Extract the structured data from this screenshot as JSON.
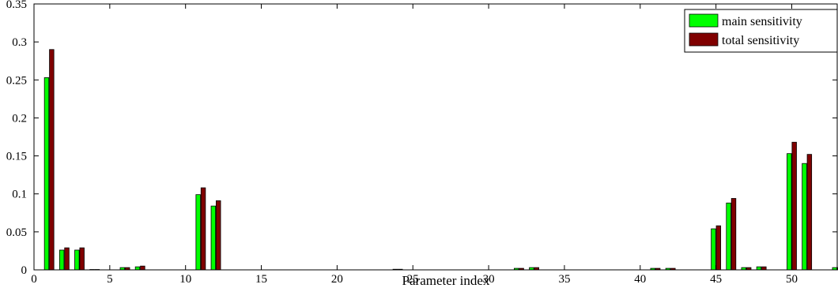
{
  "chart_data": {
    "type": "bar",
    "title": "",
    "xlabel": "Parameter index",
    "ylabel": "",
    "xlim": [
      0,
      53
    ],
    "ylim": [
      0,
      0.35
    ],
    "xticks": [
      0,
      5,
      10,
      15,
      20,
      25,
      30,
      35,
      40,
      45,
      50
    ],
    "yticks": [
      0,
      0.05,
      0.1,
      0.15,
      0.2,
      0.25,
      0.3,
      0.35
    ],
    "xtick_labels": [
      "0",
      "5",
      "10",
      "15",
      "20",
      "25",
      "30",
      "35",
      "40",
      "45",
      "50"
    ],
    "ytick_labels": [
      "0",
      "0.05",
      "0.1",
      "0.15",
      "0.2",
      "0.25",
      "0.3",
      "0.35"
    ],
    "grid": false,
    "legend_position": "top-right",
    "x": [
      1,
      2,
      3,
      4,
      5,
      6,
      7,
      8,
      9,
      10,
      11,
      12,
      13,
      14,
      15,
      16,
      17,
      18,
      19,
      20,
      21,
      22,
      23,
      24,
      25,
      26,
      27,
      28,
      29,
      30,
      31,
      32,
      33,
      34,
      35,
      36,
      37,
      38,
      39,
      40,
      41,
      42,
      43,
      44,
      45,
      46,
      47,
      48,
      49,
      50,
      51,
      52,
      53
    ],
    "series": [
      {
        "name": "main sensitivity",
        "color": "#00ff00",
        "values": [
          0.253,
          0.026,
          0.026,
          0.0005,
          0,
          0.003,
          0.004,
          0,
          0,
          0,
          0.099,
          0.084,
          0,
          0,
          0,
          0,
          0,
          0,
          0,
          0,
          0,
          0,
          0,
          0.0008,
          0,
          0,
          0,
          0,
          0,
          0,
          0,
          0.002,
          0.003,
          0,
          0,
          0,
          0,
          0,
          0,
          0,
          0.002,
          0.002,
          0,
          0,
          0.054,
          0.088,
          0.003,
          0.004,
          0,
          0.153,
          0.14,
          0,
          0.003
        ]
      },
      {
        "name": "total sensitivity",
        "color": "#800000",
        "values": [
          0.29,
          0.029,
          0.029,
          0.0005,
          0,
          0.003,
          0.005,
          0,
          0,
          0,
          0.108,
          0.091,
          0,
          0,
          0,
          0,
          0,
          0,
          0,
          0,
          0,
          0,
          0,
          0.0008,
          0,
          0,
          0,
          0,
          0,
          0,
          0,
          0.002,
          0.003,
          0,
          0,
          0,
          0,
          0,
          0,
          0,
          0.002,
          0.002,
          0,
          0,
          0.058,
          0.094,
          0.003,
          0.004,
          0,
          0.168,
          0.152,
          0,
          0.003
        ]
      }
    ]
  }
}
